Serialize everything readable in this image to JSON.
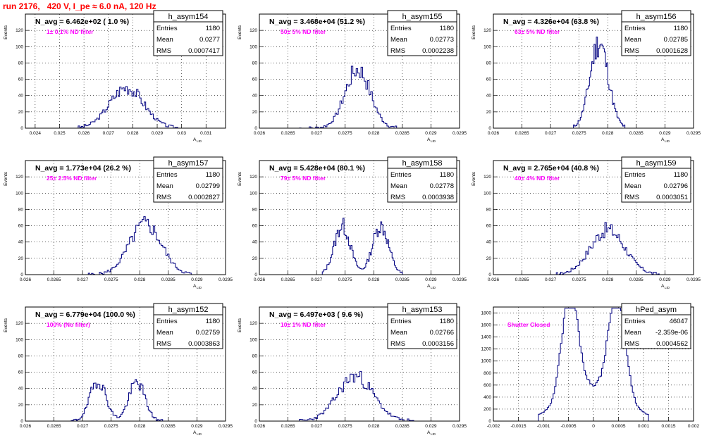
{
  "title": "run 2176,   420 V, I_pe ≈ 6.0 nA, 120 Hz",
  "stats_labels": {
    "entries": "Entries",
    "mean": "Mean",
    "rms": "RMS"
  },
  "colors": {
    "histogram": "#000080",
    "title": "#ff0000",
    "annotation": "#ff00ff",
    "text": "#000000"
  },
  "chart_data": [
    {
      "type": "bar",
      "name": "h_asym154",
      "ylabel": "Events",
      "xlabel": "A_{LID}",
      "title_text": "N_avg = 6.462e+02 ( 1.0 %)",
      "annotation": "1± 0.1% ND filter",
      "entries": "1180",
      "mean": "0.0277",
      "rms": "0.0007417",
      "xlim": [
        0.0236,
        0.0318
      ],
      "ylim": [
        0,
        140
      ],
      "xticks": [
        "0.024",
        "0.025",
        "0.026",
        "0.027",
        "0.028",
        "0.029",
        "0.03",
        "0.031"
      ],
      "yticks": [
        "0",
        "20",
        "40",
        "60",
        "80",
        "100",
        "120"
      ],
      "dist": {
        "kind": "gauss",
        "peaks": [
          [
            0.02775,
            50
          ]
        ],
        "sigma": 0.0007,
        "xmin": 0.0257,
        "xmax": 0.0301,
        "bins": 70,
        "seed": 3
      }
    },
    {
      "type": "bar",
      "name": "h_asym155",
      "ylabel": "Events",
      "xlabel": "A_{LID}",
      "title_text": "N_avg = 3.468e+04 (51.2 %)",
      "annotation": "50± 5% ND filter",
      "entries": "1180",
      "mean": "0.02773",
      "rms": "0.0002238",
      "xlim": [
        0.026,
        0.0295
      ],
      "ylim": [
        0,
        140
      ],
      "xticks": [
        "0.026",
        "0.0265",
        "0.027",
        "0.0275",
        "0.028",
        "0.0285",
        "0.029",
        "0.0295"
      ],
      "yticks": [
        "0",
        "20",
        "40",
        "60",
        "80",
        "100",
        "120"
      ],
      "dist": {
        "kind": "gauss",
        "peaks": [
          [
            0.02772,
            72
          ]
        ],
        "sigma": 0.00022,
        "xmin": 0.0267,
        "xmax": 0.0284,
        "bins": 60,
        "seed": 7
      }
    },
    {
      "type": "bar",
      "name": "h_asym156",
      "ylabel": "Events",
      "xlabel": "A_{LID}",
      "title_text": "N_avg = 4.326e+04 (63.8 %)",
      "annotation": "63± 5% ND filter",
      "entries": "1180",
      "mean": "0.02785",
      "rms": "0.0001628",
      "xlim": [
        0.026,
        0.0295
      ],
      "ylim": [
        0,
        140
      ],
      "xticks": [
        "0.026",
        "0.0265",
        "0.027",
        "0.0275",
        "0.028",
        "0.0285",
        "0.029",
        "0.0295"
      ],
      "yticks": [
        "0",
        "20",
        "40",
        "60",
        "80",
        "100",
        "120"
      ],
      "dist": {
        "kind": "gauss",
        "peaks": [
          [
            0.02785,
            105
          ]
        ],
        "sigma": 0.00016,
        "xmin": 0.0274,
        "xmax": 0.0283,
        "bins": 45,
        "seed": 11
      }
    },
    {
      "type": "bar",
      "name": "h_asym157",
      "ylabel": "Events",
      "xlabel": "A_{LID}",
      "title_text": "N_avg = 1.773e+04 (26.2 %)",
      "annotation": "25± 2.5% ND filter",
      "entries": "1180",
      "mean": "0.02799",
      "rms": "0.0002827",
      "xlim": [
        0.026,
        0.0295
      ],
      "ylim": [
        0,
        140
      ],
      "xticks": [
        "0.026",
        "0.0265",
        "0.027",
        "0.0275",
        "0.028",
        "0.0285",
        "0.029",
        "0.0295"
      ],
      "yticks": [
        "0",
        "20",
        "40",
        "60",
        "80",
        "100",
        "120"
      ],
      "dist": {
        "kind": "gauss",
        "peaks": [
          [
            0.0281,
            62
          ]
        ],
        "sigma": 0.00028,
        "xmin": 0.0271,
        "xmax": 0.0289,
        "bins": 65,
        "seed": 5
      }
    },
    {
      "type": "bar",
      "name": "h_asym158",
      "ylabel": "Events",
      "xlabel": "A_{LID}",
      "title_text": "N_avg = 5.428e+04 (80.1 %)",
      "annotation": "79± 5% ND filter",
      "entries": "1180",
      "mean": "0.02778",
      "rms": "0.0003938",
      "xlim": [
        0.026,
        0.0295
      ],
      "ylim": [
        0,
        140
      ],
      "xticks": [
        "0.026",
        "0.0265",
        "0.027",
        "0.0275",
        "0.028",
        "0.0285",
        "0.029",
        "0.0295"
      ],
      "yticks": [
        "0",
        "20",
        "40",
        "60",
        "80",
        "100",
        "120"
      ],
      "dist": {
        "kind": "bimodal",
        "peaks": [
          [
            0.02745,
            60
          ],
          [
            0.02812,
            60
          ]
        ],
        "sigma": 0.00014,
        "xmin": 0.0271,
        "xmax": 0.0285,
        "bins": 70,
        "seed": 13
      }
    },
    {
      "type": "bar",
      "name": "h_asym159",
      "ylabel": "Events",
      "xlabel": "A_{LID}",
      "title_text": "N_avg = 2.765e+04 (40.8 %)",
      "annotation": "40± 4% ND filter",
      "entries": "1180",
      "mean": "0.02796",
      "rms": "0.0003051",
      "xlim": [
        0.026,
        0.0295
      ],
      "ylim": [
        0,
        140
      ],
      "xticks": [
        "0.026",
        "0.0265",
        "0.027",
        "0.0275",
        "0.028",
        "0.0285",
        "0.029",
        "0.0295"
      ],
      "yticks": [
        "0",
        "20",
        "40",
        "60",
        "80",
        "100",
        "120"
      ],
      "dist": {
        "kind": "gauss",
        "peaks": [
          [
            0.028,
            55
          ]
        ],
        "sigma": 0.0003,
        "xmin": 0.0271,
        "xmax": 0.0289,
        "bins": 70,
        "seed": 17
      }
    },
    {
      "type": "bar",
      "name": "h_asym152",
      "ylabel": "Events",
      "xlabel": "A_{LID}",
      "title_text": "N_avg = 6.779e+04 (100.0 %)",
      "annotation": "100% (No filter)",
      "entries": "1180",
      "mean": "0.02759",
      "rms": "0.0003863",
      "xlim": [
        0.026,
        0.0295
      ],
      "ylim": [
        0,
        140
      ],
      "xticks": [
        "0.026",
        "0.0265",
        "0.027",
        "0.0275",
        "0.028",
        "0.0285",
        "0.029",
        "0.0295"
      ],
      "yticks": [
        "0",
        "20",
        "40",
        "60",
        "80",
        "100",
        "120"
      ],
      "dist": {
        "kind": "bimodal",
        "peaks": [
          [
            0.02727,
            50
          ],
          [
            0.02795,
            48
          ]
        ],
        "sigma": 0.00014,
        "xmin": 0.0268,
        "xmax": 0.0284,
        "bins": 70,
        "seed": 19
      }
    },
    {
      "type": "bar",
      "name": "h_asym153",
      "ylabel": "Events",
      "xlabel": "A_{LID}",
      "title_text": "N_avg = 6.497e+03 ( 9.6 %)",
      "annotation": "10± 1% ND filter",
      "entries": "1180",
      "mean": "0.02766",
      "rms": "0.0003156",
      "xlim": [
        0.026,
        0.0295
      ],
      "ylim": [
        0,
        140
      ],
      "xticks": [
        "0.026",
        "0.0265",
        "0.027",
        "0.0275",
        "0.028",
        "0.0285",
        "0.029",
        "0.0295"
      ],
      "yticks": [
        "0",
        "20",
        "40",
        "60",
        "80",
        "100",
        "120"
      ],
      "dist": {
        "kind": "gauss",
        "peaks": [
          [
            0.02768,
            55
          ]
        ],
        "sigma": 0.00031,
        "xmin": 0.0267,
        "xmax": 0.0287,
        "bins": 70,
        "seed": 23
      }
    },
    {
      "type": "bar",
      "name": "hPed_asym",
      "ylabel": "",
      "xlabel": "",
      "title_text": "",
      "annotation": "Shutter Closed",
      "entries": "46047",
      "mean": "-2.359e-06",
      "rms": "0.0004562",
      "xlim": [
        -0.002,
        0.002
      ],
      "ylim": [
        0,
        1900
      ],
      "xticks": [
        "-0.002",
        "-0.0015",
        "-0.001",
        "-0.0005",
        "0",
        "0.0005",
        "0.001",
        "0.0015",
        "0.002"
      ],
      "yticks": [
        "0",
        "200",
        "400",
        "600",
        "800",
        "1000",
        "1200",
        "1400",
        "1600",
        "1800"
      ],
      "dist": {
        "kind": "ped",
        "peaks": [
          [
            -0.00047,
            1800
          ],
          [
            0.00047,
            1800
          ]
        ],
        "sigma": 0.00016,
        "xmin": -0.0011,
        "xmax": 0.0011,
        "bins": 75,
        "seed": 29
      }
    }
  ]
}
